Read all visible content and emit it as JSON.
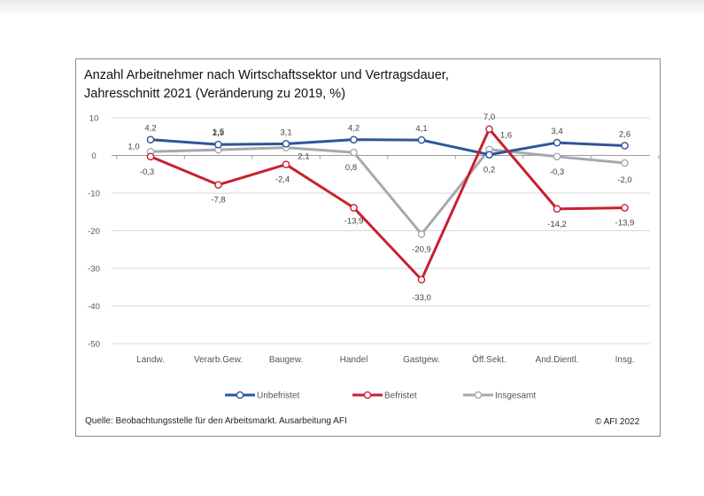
{
  "chart_data": {
    "type": "line",
    "title_lines": [
      "Anzahl Arbeitnehmer nach Wirtschaftssektor und Vertragsdauer,",
      "Jahresschnitt 2021 (Veränderung zu 2019, %)"
    ],
    "categories": [
      "Landw.",
      "Verarb.Gew.",
      "Baugew.",
      "Handel",
      "Gastgew.",
      "Öff.Sekt.",
      "And.Dientl.",
      "Insg."
    ],
    "ylim": [
      -50,
      10
    ],
    "yticks": [
      10,
      0,
      -10,
      -20,
      -30,
      -40,
      -50
    ],
    "grid": true,
    "legend_position": "bottom",
    "series": [
      {
        "name": "Unbefristet",
        "color": "#2f5597",
        "values": [
          4.2,
          2.9,
          3.1,
          4.2,
          4.1,
          0.2,
          3.4,
          2.6
        ],
        "labels": [
          "4,2",
          "2,9",
          "3,1",
          "4,2",
          "4,1",
          "0,2",
          "3,4",
          "2,6"
        ]
      },
      {
        "name": "Befristet",
        "color": "#c8202f",
        "values": [
          -0.3,
          -7.8,
          -2.4,
          -13.9,
          -33.0,
          7.0,
          -14.2,
          -13.9
        ],
        "labels": [
          "-0,3",
          "-7,8",
          "-2,4",
          "-13,9",
          "-33,0",
          "7,0",
          "-14,2",
          "-13,9"
        ]
      },
      {
        "name": "Insgesamt",
        "color": "#a6a9ad",
        "values": [
          1.0,
          1.5,
          2.1,
          0.8,
          -20.9,
          1.6,
          -0.3,
          -2.0
        ],
        "labels": [
          "1,0",
          "1,5",
          "2,1",
          "0,8",
          "-20,9",
          "1,6",
          "-0,3",
          "-2,0"
        ]
      }
    ]
  },
  "footer": {
    "source": "Quelle: Beobachtungsstelle für den Arbeitsmarkt. Ausarbeitung AFI",
    "copyright": "© AFI 2022"
  }
}
